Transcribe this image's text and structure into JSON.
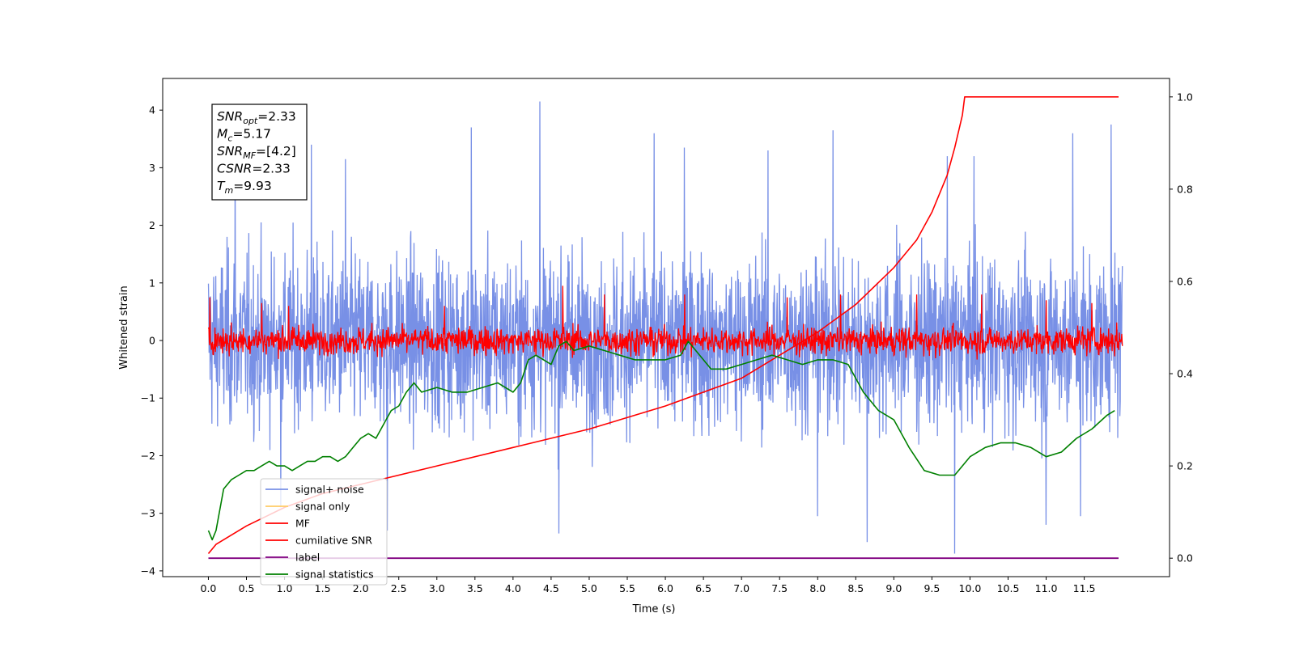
{
  "chart_data": {
    "type": "line",
    "xlabel": "Time (s)",
    "ylabel": "Whitened strain",
    "xlim": [
      -0.6,
      12.62
    ],
    "ylim": [
      -4.1,
      4.55
    ],
    "y2lim": [
      -0.04,
      1.04
    ],
    "x_ticks": [
      0.0,
      0.5,
      1.0,
      1.5,
      2.0,
      2.5,
      3.0,
      3.5,
      4.0,
      4.5,
      5.0,
      5.5,
      6.0,
      6.5,
      7.0,
      7.5,
      8.0,
      8.5,
      9.0,
      9.5,
      10.0,
      10.5,
      11.0,
      11.5
    ],
    "x_tick_labels": [
      "0.0",
      "0.5",
      "1.0",
      "1.5",
      "2.0",
      "2.5",
      "3.0",
      "3.5",
      "4.0",
      "4.5",
      "5.0",
      "5.5",
      "6.0",
      "6.5",
      "7.0",
      "7.5",
      "8.0",
      "8.5",
      "9.0",
      "9.5",
      "10.0",
      "10.5",
      "11.0",
      "11.5"
    ],
    "y_ticks": [
      4,
      3,
      2,
      1,
      0,
      -1,
      -2,
      -3,
      -4
    ],
    "y_tick_labels": [
      "4",
      "3",
      "2",
      "1",
      "0",
      "−1",
      "−2",
      "−3",
      "−4"
    ],
    "y2_ticks": [
      1.0,
      0.8,
      0.6,
      0.4,
      0.2,
      0.0
    ],
    "y2_tick_labels": [
      "1.0",
      "0.8",
      "0.6",
      "0.4",
      "0.2",
      "0.0"
    ],
    "grid": false,
    "legend_position": "lower-left",
    "annotation": {
      "lines": [
        {
          "sym": "SNR",
          "sub": "opt",
          "val": "=2.33"
        },
        {
          "sym": "M",
          "sub": "c",
          "val": "=5.17"
        },
        {
          "sym": "SNR",
          "sub": "MF",
          "val": "=[4.2]"
        },
        {
          "sym": "CSNR",
          "sub": "",
          "val": "=2.33"
        },
        {
          "sym": "T",
          "sub": "m",
          "val": "=9.93"
        }
      ]
    },
    "series": [
      {
        "name": "signal+ noise",
        "color": "#7890e6",
        "axis": "left",
        "duration": 12.0,
        "band_low": -2.3,
        "band_high": 2.3,
        "peaks": [
          [
            0.35,
            3.4
          ],
          [
            1.35,
            3.4
          ],
          [
            1.8,
            3.15
          ],
          [
            4.35,
            4.15
          ],
          [
            3.45,
            3.7
          ],
          [
            5.85,
            3.6
          ],
          [
            6.25,
            3.35
          ],
          [
            7.35,
            3.3
          ],
          [
            8.2,
            3.65
          ],
          [
            9.7,
            3.2
          ],
          [
            10.05,
            3.2
          ],
          [
            11.35,
            3.6
          ],
          [
            11.85,
            3.75
          ],
          [
            0.95,
            -2.9
          ],
          [
            2.35,
            -3.3
          ],
          [
            4.6,
            -3.35
          ],
          [
            8.0,
            -3.05
          ],
          [
            8.65,
            -3.5
          ],
          [
            9.8,
            -3.7
          ],
          [
            11.0,
            -3.2
          ],
          [
            11.45,
            -3.05
          ]
        ]
      },
      {
        "name": "signal only",
        "color": "#ffcc66",
        "axis": "left",
        "x": [],
        "y": []
      },
      {
        "name": "MF",
        "color": "#ff0000",
        "axis": "left",
        "duration": 12.0,
        "band_low": -0.38,
        "band_high": 0.42,
        "spikes": [
          [
            0.02,
            0.75
          ],
          [
            0.7,
            0.65
          ],
          [
            1.05,
            0.6
          ],
          [
            3.1,
            0.6
          ],
          [
            4.65,
            0.95
          ],
          [
            5.2,
            0.8
          ],
          [
            6.25,
            0.8
          ],
          [
            7.6,
            0.75
          ],
          [
            8.3,
            0.8
          ],
          [
            9.3,
            0.8
          ],
          [
            10.15,
            0.8
          ],
          [
            11.0,
            0.7
          ],
          [
            11.6,
            0.65
          ]
        ]
      },
      {
        "name": "cumilative SNR",
        "color": "#ff0000",
        "axis": "right",
        "x": [
          0.0,
          0.1,
          0.5,
          1.0,
          1.5,
          2.0,
          3.0,
          4.0,
          5.0,
          6.0,
          7.0,
          7.5,
          8.0,
          8.5,
          9.0,
          9.3,
          9.5,
          9.7,
          9.8,
          9.9,
          9.93,
          10.5,
          11.0,
          11.5,
          11.95
        ],
        "y": [
          0.01,
          0.03,
          0.07,
          0.11,
          0.14,
          0.16,
          0.2,
          0.24,
          0.28,
          0.33,
          0.39,
          0.44,
          0.49,
          0.55,
          0.63,
          0.69,
          0.75,
          0.83,
          0.89,
          0.96,
          1.0,
          1.0,
          1.0,
          1.0,
          1.0
        ]
      },
      {
        "name": "label",
        "color": "#800080",
        "axis": "right",
        "x": [
          0.0,
          11.95
        ],
        "y": [
          0.0,
          0.0
        ]
      },
      {
        "name": "signal statistics",
        "color": "#008000",
        "axis": "right",
        "x": [
          0.0,
          0.05,
          0.1,
          0.2,
          0.3,
          0.4,
          0.5,
          0.6,
          0.7,
          0.8,
          0.9,
          1.0,
          1.1,
          1.2,
          1.3,
          1.4,
          1.5,
          1.6,
          1.7,
          1.8,
          1.9,
          2.0,
          2.1,
          2.2,
          2.3,
          2.4,
          2.5,
          2.6,
          2.7,
          2.8,
          3.0,
          3.2,
          3.4,
          3.6,
          3.8,
          4.0,
          4.1,
          4.2,
          4.3,
          4.5,
          4.6,
          4.7,
          4.8,
          5.0,
          5.2,
          5.4,
          5.6,
          5.8,
          6.0,
          6.2,
          6.3,
          6.4,
          6.6,
          6.8,
          7.0,
          7.2,
          7.4,
          7.6,
          7.8,
          8.0,
          8.2,
          8.4,
          8.6,
          8.8,
          9.0,
          9.2,
          9.4,
          9.6,
          9.8,
          10.0,
          10.2,
          10.4,
          10.6,
          10.8,
          11.0,
          11.2,
          11.4,
          11.6,
          11.8,
          11.9
        ],
        "y": [
          0.06,
          0.04,
          0.06,
          0.15,
          0.17,
          0.18,
          0.19,
          0.19,
          0.2,
          0.21,
          0.2,
          0.2,
          0.19,
          0.2,
          0.21,
          0.21,
          0.22,
          0.22,
          0.21,
          0.22,
          0.24,
          0.26,
          0.27,
          0.26,
          0.29,
          0.32,
          0.33,
          0.36,
          0.38,
          0.36,
          0.37,
          0.36,
          0.36,
          0.37,
          0.38,
          0.36,
          0.38,
          0.43,
          0.44,
          0.42,
          0.46,
          0.47,
          0.45,
          0.46,
          0.45,
          0.44,
          0.43,
          0.43,
          0.43,
          0.44,
          0.47,
          0.45,
          0.41,
          0.41,
          0.42,
          0.43,
          0.44,
          0.43,
          0.42,
          0.43,
          0.43,
          0.42,
          0.36,
          0.32,
          0.3,
          0.24,
          0.19,
          0.18,
          0.18,
          0.22,
          0.24,
          0.25,
          0.25,
          0.24,
          0.22,
          0.23,
          0.26,
          0.28,
          0.31,
          0.32
        ]
      }
    ]
  }
}
